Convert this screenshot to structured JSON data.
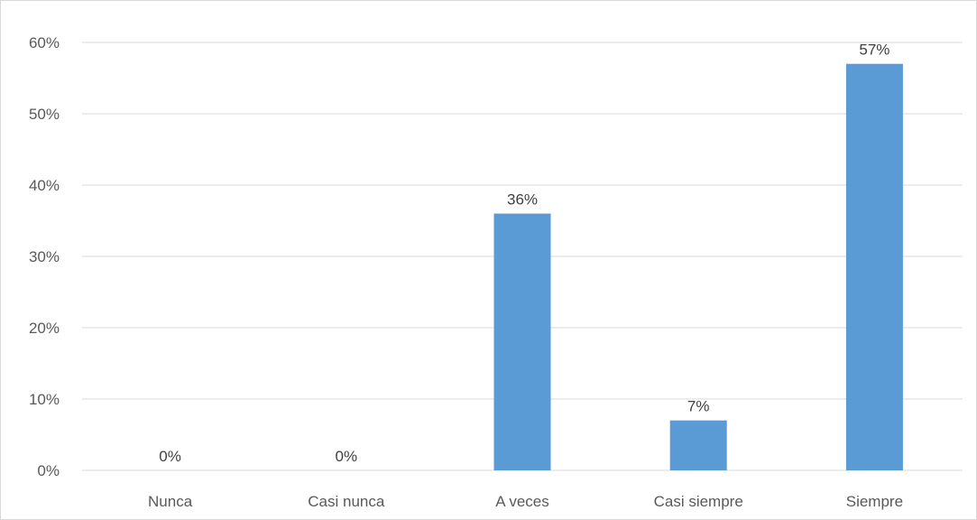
{
  "chart_data": {
    "type": "bar",
    "title": "",
    "xlabel": "",
    "ylabel": "",
    "categories": [
      "Nunca",
      "Casi nunca",
      "A veces",
      "Casi siempre",
      "Siempre"
    ],
    "values": [
      0,
      0,
      36,
      7,
      57
    ],
    "data_labels": [
      "0%",
      "0%",
      "36%",
      "7%",
      "57%"
    ],
    "ylim": [
      0,
      60
    ],
    "yticks": [
      0,
      10,
      20,
      30,
      40,
      50,
      60
    ],
    "ytick_labels": [
      "0%",
      "10%",
      "20%",
      "30%",
      "40%",
      "50%",
      "60%"
    ],
    "grid": true,
    "legend": "none",
    "colors": {
      "bar": "#5b9bd5",
      "grid": "#d9d9d9",
      "tick_text": "#595959",
      "label_text": "#404040"
    }
  }
}
